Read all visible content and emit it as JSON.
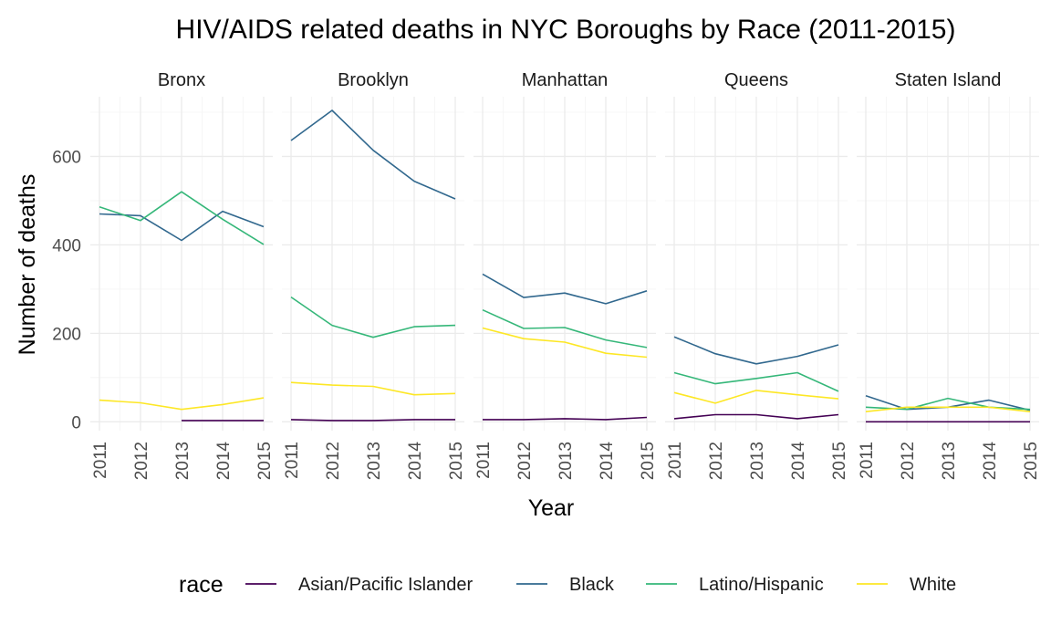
{
  "chart_data": {
    "type": "line",
    "title": "HIV/AIDS related deaths in NYC Boroughs by Race (2011-2015)",
    "xlabel": "Year",
    "ylabel": "Number of deaths",
    "x": [
      2011,
      2012,
      2013,
      2014,
      2015
    ],
    "x_tick_labels": [
      "2011",
      "2012",
      "2013",
      "2014",
      "2015"
    ],
    "ylim": [
      -20,
      735
    ],
    "y_ticks": [
      0,
      200,
      400,
      600
    ],
    "grid": true,
    "facet_by": "borough",
    "legend": {
      "title": "race",
      "position": "bottom"
    },
    "series_styles": [
      {
        "name": "Asian/Pacific Islander",
        "color": "#440154"
      },
      {
        "name": "Black",
        "color": "#31688E"
      },
      {
        "name": "Latino/Hispanic",
        "color": "#35B779"
      },
      {
        "name": "White",
        "color": "#FDE725"
      }
    ],
    "panels": [
      {
        "label": "Bronx",
        "series": [
          {
            "name": "Asian/Pacific Islander",
            "values": [
              null,
              null,
              3,
              3,
              3
            ]
          },
          {
            "name": "Black",
            "values": [
              470,
              466,
              410,
              476,
              441
            ]
          },
          {
            "name": "Latino/Hispanic",
            "values": [
              486,
              455,
              520,
              458,
              401
            ]
          },
          {
            "name": "White",
            "values": [
              49,
              43,
              28,
              39,
              54
            ]
          }
        ]
      },
      {
        "label": "Brooklyn",
        "series": [
          {
            "name": "Asian/Pacific Islander",
            "values": [
              5,
              3,
              3,
              5,
              5
            ]
          },
          {
            "name": "Black",
            "values": [
              636,
              704,
              614,
              544,
              504
            ]
          },
          {
            "name": "Latino/Hispanic",
            "values": [
              282,
              218,
              191,
              215,
              218
            ]
          },
          {
            "name": "White",
            "values": [
              89,
              83,
              80,
              61,
              64
            ]
          }
        ]
      },
      {
        "label": "Manhattan",
        "series": [
          {
            "name": "Asian/Pacific Islander",
            "values": [
              5,
              5,
              7,
              5,
              10
            ]
          },
          {
            "name": "Black",
            "values": [
              334,
              281,
              291,
              267,
              296
            ]
          },
          {
            "name": "Latino/Hispanic",
            "values": [
              253,
              211,
              213,
              185,
              168
            ]
          },
          {
            "name": "White",
            "values": [
              212,
              188,
              180,
              155,
              146
            ]
          }
        ]
      },
      {
        "label": "Queens",
        "series": [
          {
            "name": "Asian/Pacific Islander",
            "values": [
              7,
              16,
              16,
              7,
              16
            ]
          },
          {
            "name": "Black",
            "values": [
              192,
              154,
              131,
              148,
              174
            ]
          },
          {
            "name": "Latino/Hispanic",
            "values": [
              111,
              86,
              98,
              111,
              69
            ]
          },
          {
            "name": "White",
            "values": [
              66,
              42,
              71,
              61,
              52
            ]
          }
        ]
      },
      {
        "label": "Staten Island",
        "series": [
          {
            "name": "Asian/Pacific Islander",
            "values": [
              0,
              0,
              0,
              0,
              0
            ]
          },
          {
            "name": "Black",
            "values": [
              59,
              28,
              33,
              49,
              26
            ]
          },
          {
            "name": "Latino/Hispanic",
            "values": [
              33,
              28,
              53,
              33,
              28
            ]
          },
          {
            "name": "White",
            "values": [
              23,
              33,
              33,
              33,
              23
            ]
          }
        ]
      }
    ]
  }
}
